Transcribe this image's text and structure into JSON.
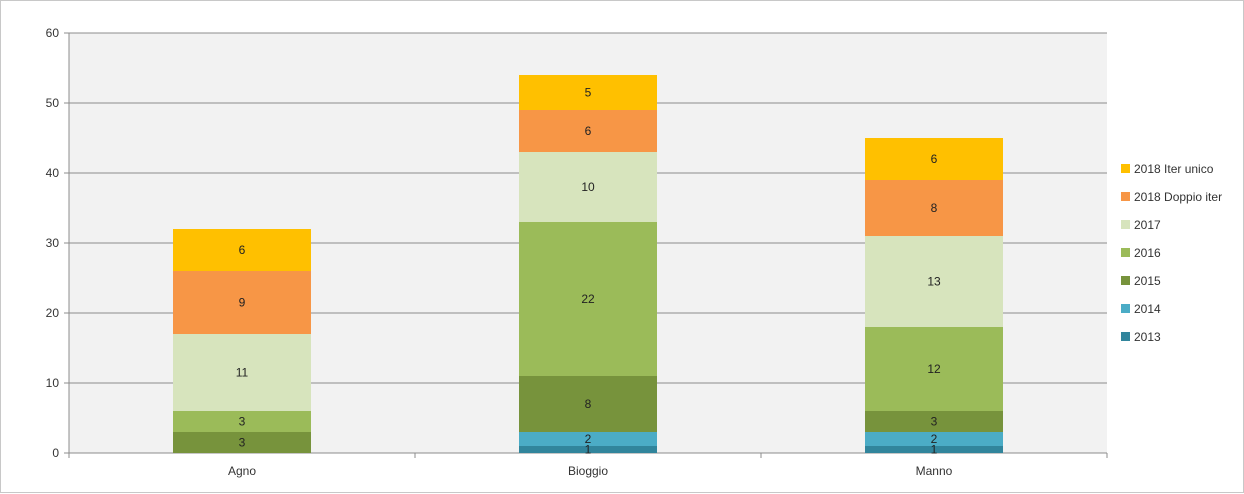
{
  "chart_data": {
    "type": "bar",
    "stacked": true,
    "categories": [
      "Agno",
      "Bioggio",
      "Manno"
    ],
    "ylim": [
      0,
      60
    ],
    "yticks": [
      0,
      10,
      20,
      30,
      40,
      50,
      60
    ],
    "grid": true,
    "legend_position": "right",
    "series": [
      {
        "name": "2013",
        "values": [
          0,
          1,
          1
        ],
        "color": "#31859c"
      },
      {
        "name": "2014",
        "values": [
          0,
          2,
          2
        ],
        "color": "#4bacc6"
      },
      {
        "name": "2015",
        "values": [
          3,
          8,
          3
        ],
        "color": "#77933c"
      },
      {
        "name": "2016",
        "values": [
          3,
          22,
          12
        ],
        "color": "#9bbb59"
      },
      {
        "name": "2017",
        "values": [
          11,
          10,
          13
        ],
        "color": "#d7e4bd"
      },
      {
        "name": "2018 Doppio iter",
        "values": [
          9,
          6,
          8
        ],
        "color": "#f79646"
      },
      {
        "name": "2018 Iter unico",
        "values": [
          6,
          5,
          6
        ],
        "color": "#ffc000"
      }
    ]
  }
}
